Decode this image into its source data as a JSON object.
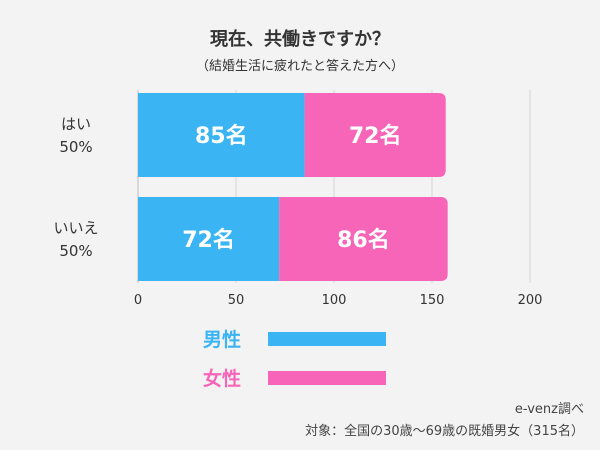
{
  "chart_data": {
    "type": "bar",
    "orientation": "horizontal",
    "stacked": true,
    "title": "現在、共働きですか？",
    "subtitle": "（結婚生活に疲れたと答えた方へ）",
    "categories": [
      {
        "label": "はい",
        "pct": "50%"
      },
      {
        "label": "いいえ",
        "pct": "50%"
      }
    ],
    "series": [
      {
        "name": "男性",
        "color": "#3ab4f2",
        "values": [
          85,
          72
        ],
        "labels": [
          "85名",
          "72名"
        ]
      },
      {
        "name": "女性",
        "color": "#f765b8",
        "values": [
          72,
          86
        ],
        "labels": [
          "72名",
          "86名"
        ]
      }
    ],
    "xlim": [
      0,
      200
    ],
    "xticks": [
      "0",
      "50",
      "100",
      "150",
      "200"
    ],
    "grid": true,
    "legend_position": "bottom"
  },
  "source": "e-venz調べ",
  "note": "対象：全国の30歳〜69歳の既婚男女（315名）"
}
